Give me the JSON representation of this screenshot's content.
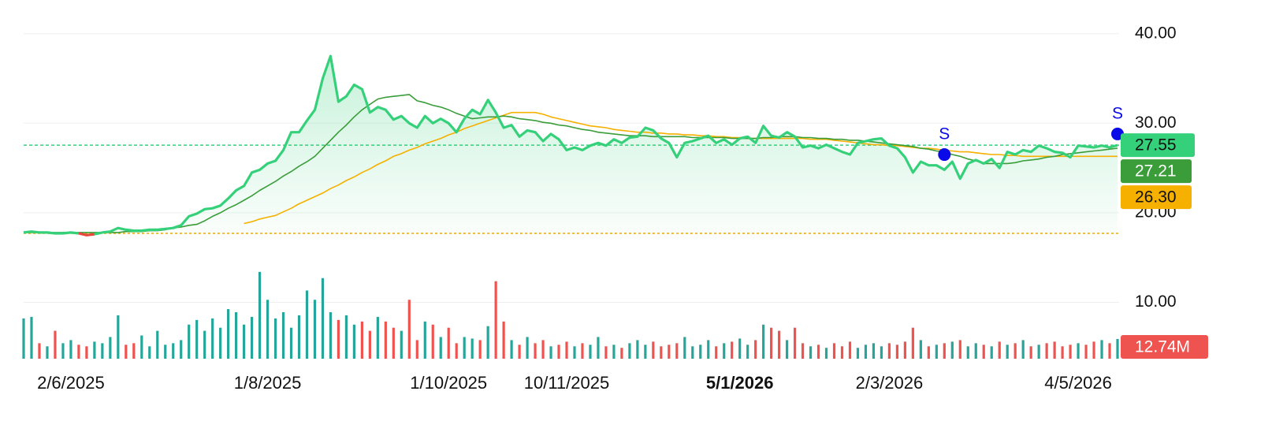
{
  "chart_data": {
    "type": "line",
    "categories": [
      null,
      null,
      null,
      null,
      null,
      null,
      "2/6/2025",
      null,
      null,
      null,
      null,
      null,
      null,
      null,
      null,
      null,
      null,
      null,
      null,
      null,
      null,
      null,
      null,
      null,
      null,
      null,
      null,
      null,
      null,
      null,
      null,
      "1/8/2025",
      null,
      null,
      null,
      null,
      null,
      null,
      null,
      null,
      null,
      null,
      null,
      null,
      null,
      null,
      null,
      null,
      null,
      null,
      null,
      null,
      null,
      null,
      "1/10/2025",
      null,
      null,
      null,
      null,
      null,
      null,
      null,
      null,
      null,
      null,
      null,
      null,
      null,
      null,
      "10/11/2025",
      null,
      null,
      null,
      null,
      null,
      null,
      null,
      null,
      null,
      null,
      null,
      null,
      null,
      null,
      null,
      null,
      null,
      null,
      null,
      null,
      null,
      "5/1/2026",
      null,
      null,
      null,
      null,
      null,
      null,
      null,
      null,
      null,
      null,
      null,
      null,
      null,
      null,
      null,
      null,
      null,
      null,
      "2/3/2026",
      null,
      null,
      null,
      null,
      null,
      null,
      null,
      null,
      null,
      null,
      null,
      null,
      null,
      null,
      null,
      null,
      null,
      null,
      null,
      null,
      null,
      null,
      null,
      "4/5/2026",
      null,
      null,
      null,
      null,
      null
    ],
    "highlight_category": "5/1/2026",
    "ylim": [
      3.7,
      42
    ],
    "yticks": [
      {
        "value": 10,
        "label": "10.00"
      },
      {
        "value": 20,
        "label": "20.00"
      },
      {
        "value": 30,
        "label": "30.00"
      },
      {
        "value": 40,
        "label": "40.00"
      }
    ],
    "grid": true,
    "baseline": 17.7,
    "baseline_color": "#e6a817",
    "series": [
      {
        "color": "#35d07a",
        "down_color": "#e8463a",
        "fill": true,
        "width": 3.2,
        "text_color": "#111111",
        "last_value_label": "27.55",
        "values": [
          17.8,
          17.9,
          17.8,
          17.8,
          17.7,
          17.7,
          17.8,
          17.7,
          17.5,
          17.6,
          17.8,
          17.9,
          18.3,
          18.1,
          18.0,
          18.0,
          18.1,
          18.1,
          18.2,
          18.3,
          18.6,
          19.6,
          19.9,
          20.4,
          20.5,
          20.8,
          21.6,
          22.5,
          23.0,
          24.5,
          24.8,
          25.5,
          25.8,
          27.0,
          29.0,
          29.0,
          30.3,
          31.5,
          35.0,
          37.5,
          32.4,
          33.0,
          34.3,
          33.8,
          31.2,
          31.8,
          31.5,
          30.4,
          30.8,
          30.0,
          29.5,
          30.8,
          30.0,
          30.5,
          30.0,
          29.0,
          30.5,
          31.5,
          31.0,
          32.6,
          31.2,
          29.5,
          29.8,
          28.5,
          29.2,
          29.0,
          28.0,
          28.8,
          28.2,
          27.0,
          27.3,
          27.0,
          27.5,
          27.8,
          27.5,
          28.2,
          27.8,
          28.4,
          28.5,
          29.5,
          29.2,
          28.3,
          27.8,
          26.2,
          27.8,
          28.0,
          28.3,
          28.6,
          27.8,
          28.2,
          27.6,
          28.3,
          28.5,
          27.8,
          29.7,
          28.6,
          28.4,
          29.0,
          28.5,
          27.3,
          27.5,
          27.2,
          27.6,
          27.2,
          26.8,
          26.5,
          27.8,
          28.0,
          28.2,
          28.3,
          27.5,
          27.2,
          26.2,
          24.5,
          25.7,
          25.3,
          25.3,
          24.8,
          25.7,
          23.8,
          25.5,
          25.9,
          25.5,
          26.0,
          25.0,
          26.8,
          26.5,
          27.0,
          26.8,
          27.5,
          27.2,
          26.8,
          26.7,
          26.2,
          27.5,
          27.4,
          27.3,
          27.5,
          27.3,
          27.55
        ]
      },
      {
        "color": "#3a9d3a",
        "width": 1.6,
        "text_color": "#ffffff",
        "last_value_label": "27.21",
        "values": [
          17.8,
          17.8,
          17.8,
          17.8,
          17.8,
          17.8,
          17.8,
          17.8,
          17.8,
          17.8,
          17.8,
          17.8,
          17.8,
          17.9,
          17.9,
          17.9,
          18.0,
          18.0,
          18.1,
          18.3,
          18.4,
          18.6,
          18.7,
          19.1,
          19.6,
          20.0,
          20.5,
          20.9,
          21.4,
          21.9,
          22.5,
          23.0,
          23.5,
          24.1,
          24.6,
          25.2,
          25.7,
          26.3,
          27.2,
          28.1,
          29.0,
          29.8,
          30.7,
          31.5,
          32.1,
          32.7,
          32.9,
          33.0,
          33.1,
          33.2,
          32.5,
          32.3,
          32.0,
          31.8,
          31.5,
          31.1,
          30.8,
          30.5,
          30.6,
          30.7,
          30.7,
          30.8,
          30.7,
          30.5,
          30.4,
          30.3,
          30.1,
          30.0,
          29.8,
          29.7,
          29.5,
          29.3,
          29.2,
          29.0,
          28.9,
          28.8,
          28.7,
          28.6,
          28.6,
          28.6,
          28.5,
          28.5,
          28.5,
          28.5,
          28.5,
          28.4,
          28.4,
          28.4,
          28.4,
          28.4,
          28.3,
          28.3,
          28.3,
          28.3,
          28.4,
          28.4,
          28.5,
          28.5,
          28.5,
          28.4,
          28.4,
          28.3,
          28.3,
          28.2,
          28.2,
          28.1,
          28.1,
          28.0,
          27.9,
          27.8,
          27.7,
          27.6,
          27.5,
          27.4,
          27.2,
          27.1,
          26.9,
          26.8,
          26.5,
          26.3,
          26.0,
          25.8,
          25.5,
          25.5,
          25.5,
          25.5,
          25.6,
          25.8,
          25.9,
          26.0,
          26.2,
          26.3,
          26.5,
          26.6,
          26.7,
          26.8,
          26.9,
          27.0,
          27.1,
          27.21
        ]
      },
      {
        "color": "#f5b000",
        "width": 1.6,
        "text_color": "#111111",
        "last_value_label": "26.30",
        "values": [
          null,
          null,
          null,
          null,
          null,
          null,
          null,
          null,
          null,
          null,
          null,
          null,
          null,
          null,
          null,
          null,
          null,
          null,
          null,
          null,
          null,
          null,
          null,
          null,
          null,
          null,
          null,
          null,
          18.8,
          19.0,
          19.3,
          19.5,
          19.7,
          20.1,
          20.5,
          21.0,
          21.4,
          21.8,
          22.2,
          22.7,
          23.1,
          23.6,
          24.0,
          24.5,
          24.9,
          25.4,
          25.8,
          26.3,
          26.6,
          27.0,
          27.3,
          27.7,
          28.0,
          28.3,
          28.7,
          29.0,
          29.4,
          29.7,
          30.0,
          30.3,
          30.6,
          30.9,
          31.2,
          31.2,
          31.2,
          31.2,
          31.0,
          30.7,
          30.5,
          30.3,
          30.1,
          29.9,
          29.7,
          29.6,
          29.5,
          29.3,
          29.2,
          29.1,
          29.0,
          29.0,
          28.9,
          28.9,
          28.8,
          28.8,
          28.7,
          28.7,
          28.6,
          28.6,
          28.5,
          28.5,
          28.4,
          28.4,
          28.3,
          28.3,
          28.3,
          28.3,
          28.3,
          28.3,
          28.3,
          28.3,
          28.2,
          28.2,
          28.2,
          28.1,
          28.0,
          27.9,
          27.8,
          27.7,
          27.6,
          27.6,
          27.5,
          27.5,
          27.4,
          27.3,
          27.2,
          27.2,
          27.1,
          27.0,
          26.9,
          26.8,
          26.8,
          26.7,
          26.6,
          26.5,
          26.5,
          26.4,
          26.4,
          26.3,
          26.3,
          26.3,
          26.3,
          26.3,
          26.3,
          26.3,
          26.3,
          26.3,
          26.3,
          26.3,
          26.3,
          26.3
        ]
      }
    ],
    "volume": {
      "ylim": [
        0,
        60
      ],
      "up_color": "#26a69a",
      "down_color": "#ef5350",
      "badge_color": "#ef5350",
      "text_color": "#ffffff",
      "last_value_label": "12.74M",
      "values": [
        26,
        27,
        10,
        8,
        18,
        10,
        12,
        9,
        8,
        11,
        10,
        14,
        28,
        9,
        10,
        15,
        8,
        18,
        9,
        10,
        12,
        22,
        25,
        18,
        26,
        20,
        32,
        30,
        22,
        27,
        56,
        38,
        26,
        30,
        20,
        28,
        44,
        38,
        52,
        30,
        25,
        28,
        22,
        24,
        18,
        27,
        24,
        20,
        18,
        38,
        12,
        24,
        22,
        14,
        20,
        10,
        14,
        13,
        12,
        21,
        50,
        24,
        12,
        9,
        14,
        10,
        12,
        8,
        9,
        11,
        8,
        10,
        9,
        14,
        8,
        9,
        7,
        10,
        12,
        9,
        11,
        8,
        9,
        10,
        14,
        8,
        9,
        12,
        8,
        10,
        11,
        13,
        9,
        12,
        22,
        20,
        18,
        12,
        20,
        10,
        8,
        9,
        7,
        10,
        8,
        11,
        7,
        9,
        10,
        8,
        10,
        9,
        11,
        20,
        12,
        8,
        9,
        10,
        11,
        12,
        8,
        10,
        9,
        8,
        11,
        9,
        10,
        12,
        8,
        9,
        10,
        11,
        8,
        9,
        10,
        9,
        11,
        12,
        10,
        12.74
      ]
    },
    "signals": {
      "label": "S",
      "color": "#0a0ae8",
      "values": [
        null,
        null,
        null,
        null,
        null,
        null,
        null,
        null,
        null,
        null,
        null,
        null,
        null,
        null,
        null,
        null,
        null,
        null,
        null,
        null,
        null,
        null,
        null,
        null,
        null,
        null,
        null,
        null,
        null,
        null,
        null,
        null,
        null,
        null,
        null,
        null,
        null,
        null,
        null,
        null,
        null,
        null,
        null,
        null,
        null,
        null,
        null,
        null,
        null,
        null,
        null,
        null,
        null,
        null,
        null,
        null,
        null,
        null,
        null,
        null,
        null,
        null,
        null,
        null,
        null,
        null,
        null,
        null,
        null,
        null,
        null,
        null,
        null,
        null,
        null,
        null,
        null,
        null,
        null,
        null,
        null,
        null,
        null,
        null,
        null,
        null,
        null,
        null,
        null,
        null,
        null,
        null,
        null,
        null,
        null,
        null,
        null,
        null,
        null,
        null,
        null,
        null,
        null,
        null,
        null,
        null,
        null,
        null,
        null,
        null,
        null,
        null,
        null,
        null,
        null,
        null,
        null,
        26.5,
        null,
        null,
        null,
        null,
        null,
        null,
        null,
        null,
        null,
        null,
        null,
        null,
        null,
        null,
        null,
        null,
        null,
        null,
        null,
        null,
        null,
        28.8
      ]
    }
  }
}
